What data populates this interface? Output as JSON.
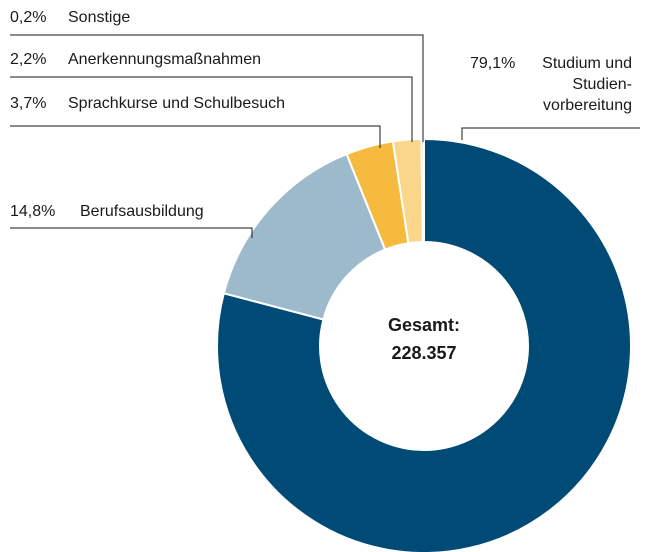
{
  "chart_data": {
    "type": "donut",
    "categories": [
      "Studium und\nStudien-\nvorbereitung",
      "Berufsausbildung",
      "Sprachkurse und Schulbesuch",
      "Anerkennungsmaßnahmen",
      "Sonstige"
    ],
    "values": [
      79.1,
      14.8,
      3.7,
      2.2,
      0.2
    ],
    "value_labels": [
      "79,1%",
      "14,8%",
      "3,7%",
      "2,2%",
      "0,2%"
    ],
    "colors": [
      "#004b76",
      "#9db9cc",
      "#f6bb3e",
      "#fad68a",
      "#d9d9d9"
    ],
    "center_label": [
      "Gesamt:",
      "228.357"
    ]
  }
}
